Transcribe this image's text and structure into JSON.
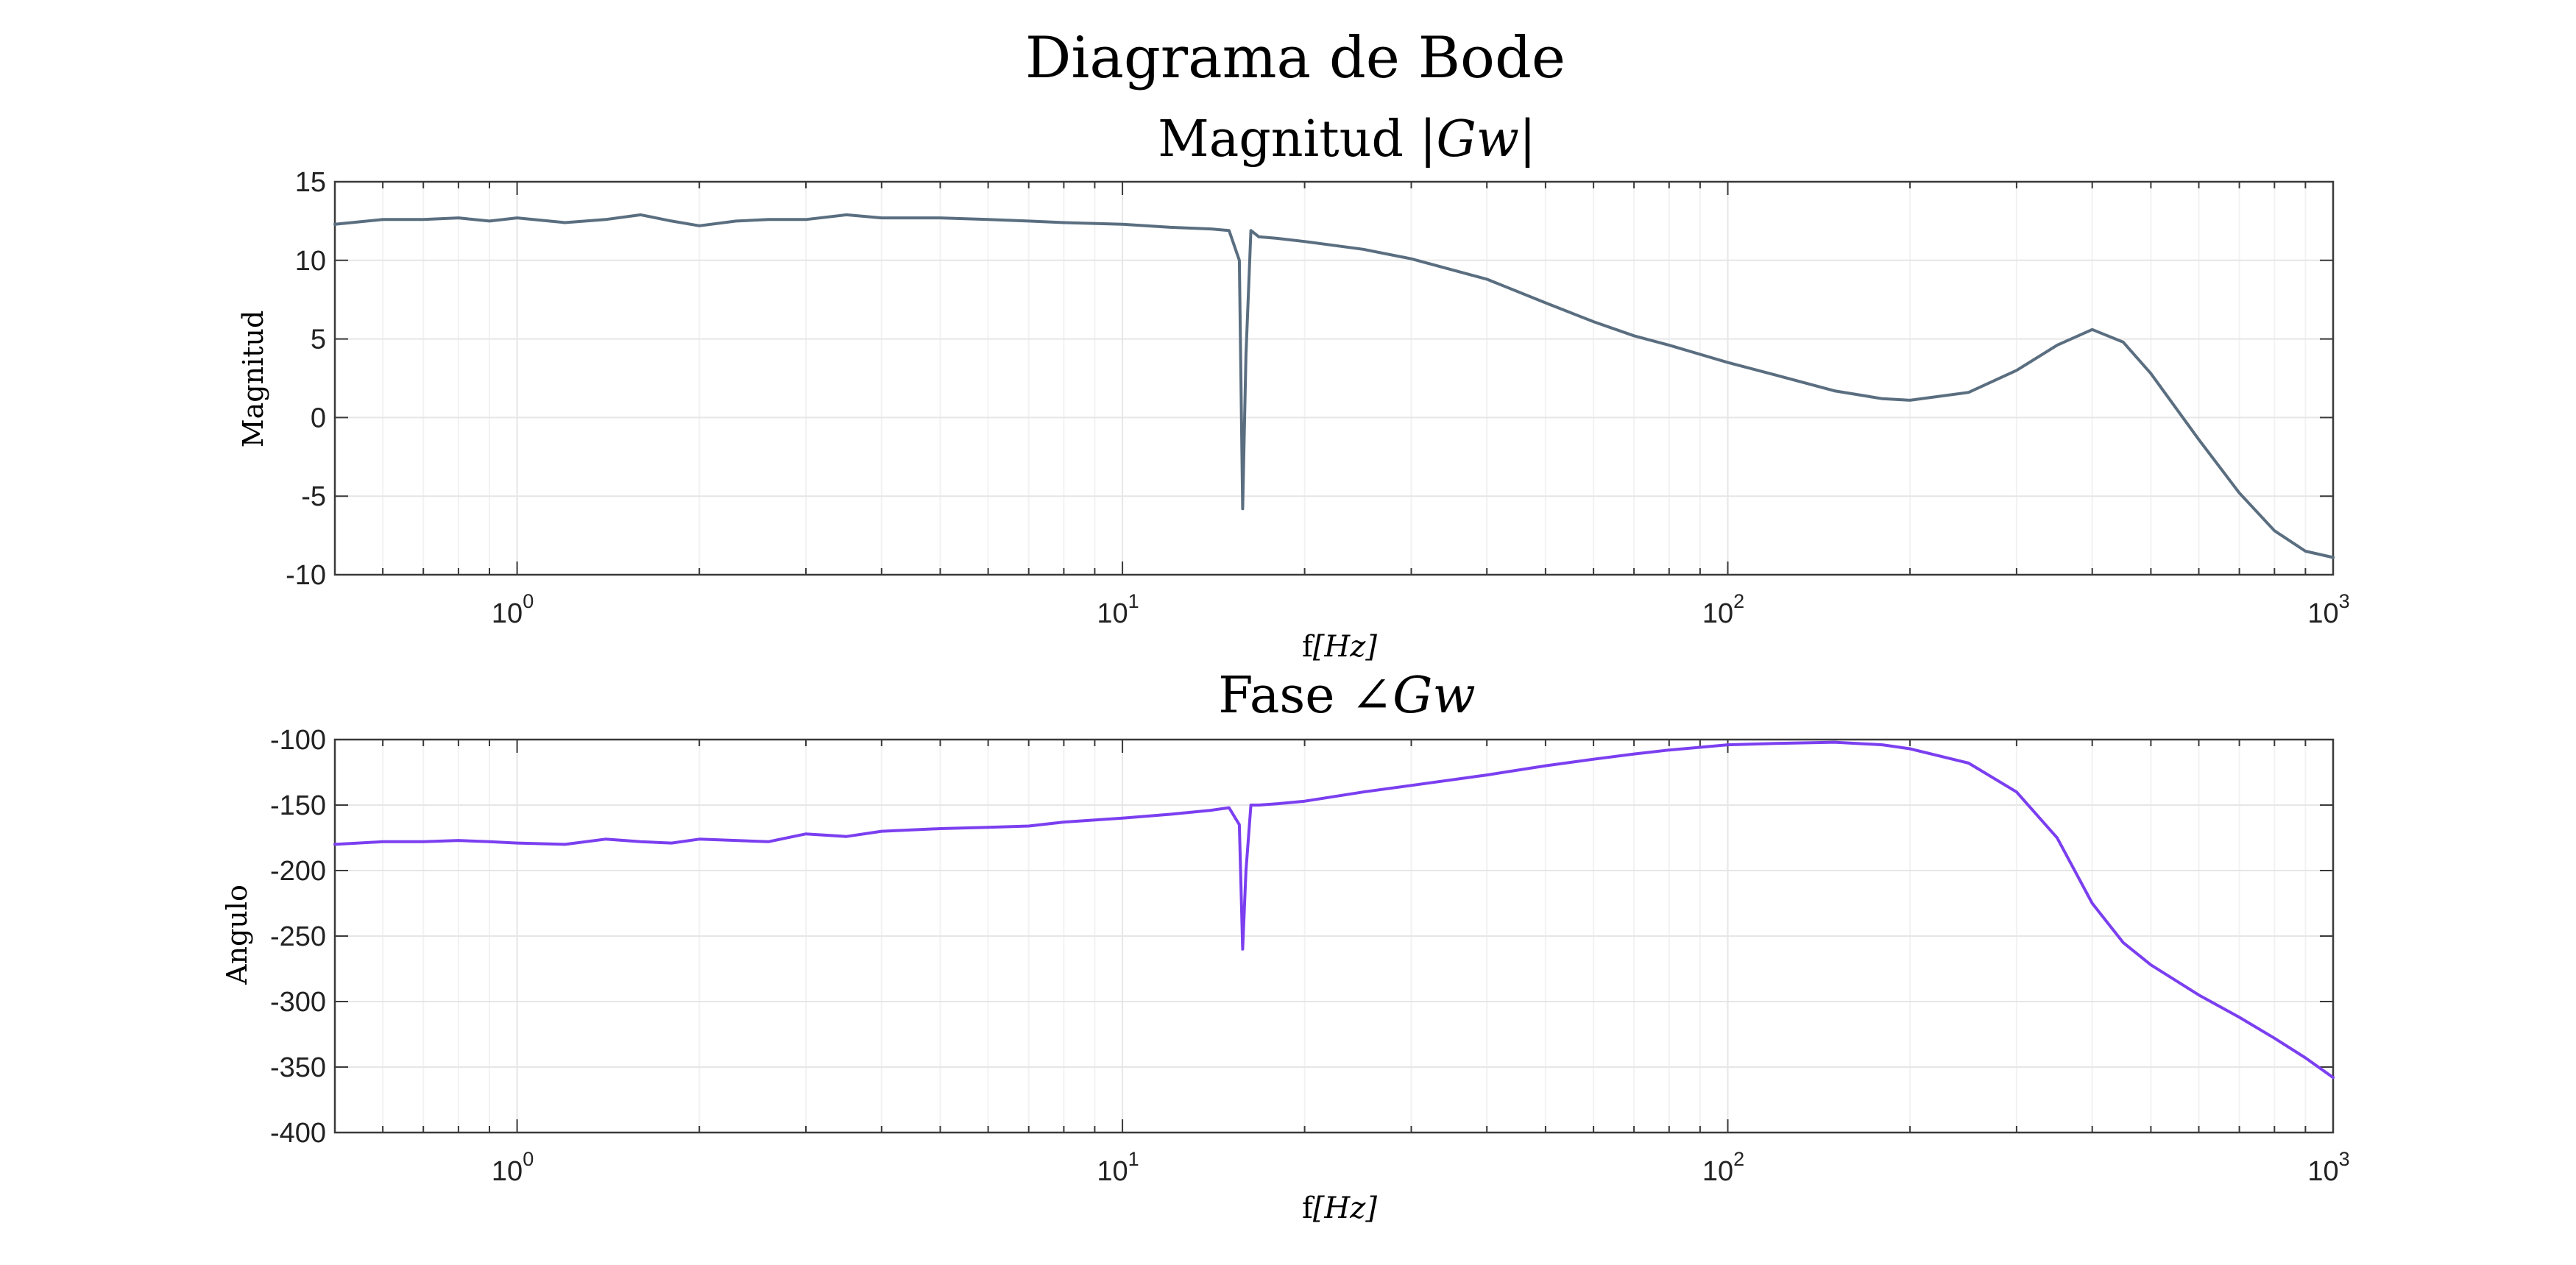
{
  "figure": {
    "title": "Diagrama de Bode"
  },
  "chart_data": [
    {
      "type": "line",
      "title_text": "Magnitud ",
      "title_math": "|Gw|",
      "xlabel_text": "f",
      "xlabel_math": "[Hz]",
      "ylabel": "Magnitud",
      "xscale": "log",
      "xlim": [
        0.5,
        1000
      ],
      "ylim": [
        -10,
        15
      ],
      "yticks": [
        "15",
        "10",
        "5",
        "0",
        "-5",
        "-10"
      ],
      "xticks": [
        {
          "base": "10",
          "exp": "0"
        },
        {
          "base": "10",
          "exp": "1"
        },
        {
          "base": "10",
          "exp": "2"
        },
        {
          "base": "10",
          "exp": "3"
        }
      ],
      "grid": true,
      "color": "#5a6e80",
      "series": [
        {
          "x": [
            0.5,
            0.6,
            0.7,
            0.8,
            0.9,
            1.0,
            1.2,
            1.4,
            1.6,
            1.8,
            2.0,
            2.3,
            2.6,
            3.0,
            3.5,
            4.0,
            5.0,
            6.0,
            7.0,
            8.0,
            10.0,
            12.0,
            14.0,
            15.0,
            15.6,
            15.8,
            16.0,
            16.3,
            16.8,
            18.0,
            20.0,
            25.0,
            30.0,
            40.0,
            50.0,
            60.0,
            70.0,
            80.0,
            100.0,
            120.0,
            150.0,
            180.0,
            200.0,
            250.0,
            300.0,
            350.0,
            400.0,
            450.0,
            500.0,
            600.0,
            700.0,
            800.0,
            900.0,
            1000.0
          ],
          "y": [
            12.3,
            12.6,
            12.6,
            12.7,
            12.5,
            12.7,
            12.4,
            12.6,
            12.9,
            12.5,
            12.2,
            12.5,
            12.6,
            12.6,
            12.9,
            12.7,
            12.7,
            12.6,
            12.5,
            12.4,
            12.3,
            12.1,
            12.0,
            11.9,
            10.0,
            -5.8,
            4.0,
            11.9,
            11.5,
            11.4,
            11.2,
            10.7,
            10.1,
            8.8,
            7.3,
            6.1,
            5.2,
            4.6,
            3.5,
            2.7,
            1.7,
            1.2,
            1.1,
            1.6,
            3.0,
            4.6,
            5.6,
            4.8,
            2.8,
            -1.4,
            -4.8,
            -7.2,
            -8.5,
            -8.9
          ]
        }
      ]
    },
    {
      "type": "line",
      "title_text": "Fase ",
      "title_math": "∠Gw",
      "xlabel_text": "f",
      "xlabel_math": "[Hz]",
      "ylabel": "Angulo",
      "xscale": "log",
      "xlim": [
        0.5,
        1000
      ],
      "ylim": [
        -400,
        -100
      ],
      "yticks": [
        "-100",
        "-150",
        "-200",
        "-250",
        "-300",
        "-350",
        "-400"
      ],
      "xticks": [
        {
          "base": "10",
          "exp": "0"
        },
        {
          "base": "10",
          "exp": "1"
        },
        {
          "base": "10",
          "exp": "2"
        },
        {
          "base": "10",
          "exp": "3"
        }
      ],
      "grid": true,
      "color": "#7b3ff0",
      "series": [
        {
          "x": [
            0.5,
            0.6,
            0.7,
            0.8,
            0.9,
            1.0,
            1.2,
            1.4,
            1.6,
            1.8,
            2.0,
            2.3,
            2.6,
            3.0,
            3.5,
            4.0,
            5.0,
            6.0,
            7.0,
            8.0,
            10.0,
            12.0,
            14.0,
            15.0,
            15.6,
            15.8,
            16.0,
            16.3,
            16.8,
            18.0,
            20.0,
            25.0,
            30.0,
            40.0,
            50.0,
            60.0,
            70.0,
            80.0,
            100.0,
            120.0,
            150.0,
            180.0,
            200.0,
            250.0,
            300.0,
            350.0,
            400.0,
            450.0,
            500.0,
            600.0,
            700.0,
            800.0,
            900.0,
            1000.0
          ],
          "y": [
            -180,
            -178,
            -178,
            -177,
            -178,
            -179,
            -180,
            -176,
            -178,
            -179,
            -176,
            -177,
            -178,
            -172,
            -174,
            -170,
            -168,
            -167,
            -166,
            -163,
            -160,
            -157,
            -154,
            -152,
            -165,
            -260,
            -200,
            -150,
            -150,
            -149,
            -147,
            -140,
            -135,
            -127,
            -120,
            -115,
            -111,
            -108,
            -104,
            -103,
            -102,
            -104,
            -107,
            -118,
            -140,
            -175,
            -225,
            -255,
            -272,
            -295,
            -312,
            -328,
            -343,
            -358
          ]
        }
      ]
    }
  ]
}
